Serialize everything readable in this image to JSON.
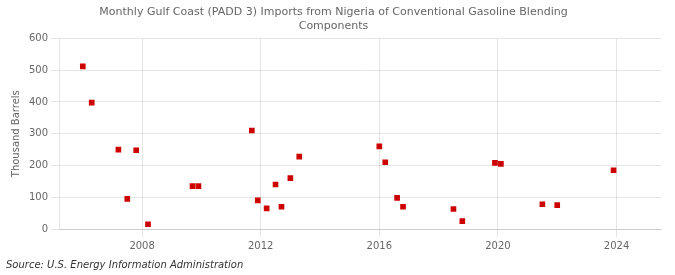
{
  "chart_data": {
    "type": "scatter",
    "title": "Monthly Gulf Coast (PADD 3) Imports from Nigeria of Conventional Gasoline Blending\nComponents",
    "ylabel": "Thousand Barrels",
    "annotations": [
      "Source: U.S. Energy Information Administration"
    ],
    "color": "#cc0000",
    "marker": "square",
    "grid": true,
    "xlim": [
      2005.2,
      2025.5
    ],
    "ylim": [
      0,
      600
    ],
    "xticks": [
      2008,
      2012,
      2016,
      2020,
      2024
    ],
    "yticks": [
      0,
      100,
      200,
      300,
      400,
      500,
      600
    ],
    "x": [
      2006.0,
      2006.3,
      2007.2,
      2007.5,
      2007.8,
      2008.2,
      2009.7,
      2009.9,
      2011.7,
      2011.9,
      2012.2,
      2012.5,
      2012.7,
      2013.0,
      2013.3,
      2016.0,
      2016.2,
      2016.6,
      2016.8,
      2018.5,
      2018.8,
      2019.9,
      2020.1,
      2021.5,
      2022.0,
      2023.9
    ],
    "values": [
      512,
      398,
      250,
      95,
      248,
      15,
      135,
      135,
      310,
      90,
      65,
      140,
      70,
      160,
      228,
      260,
      210,
      98,
      70,
      63,
      25,
      208,
      205,
      78,
      75,
      185
    ]
  }
}
